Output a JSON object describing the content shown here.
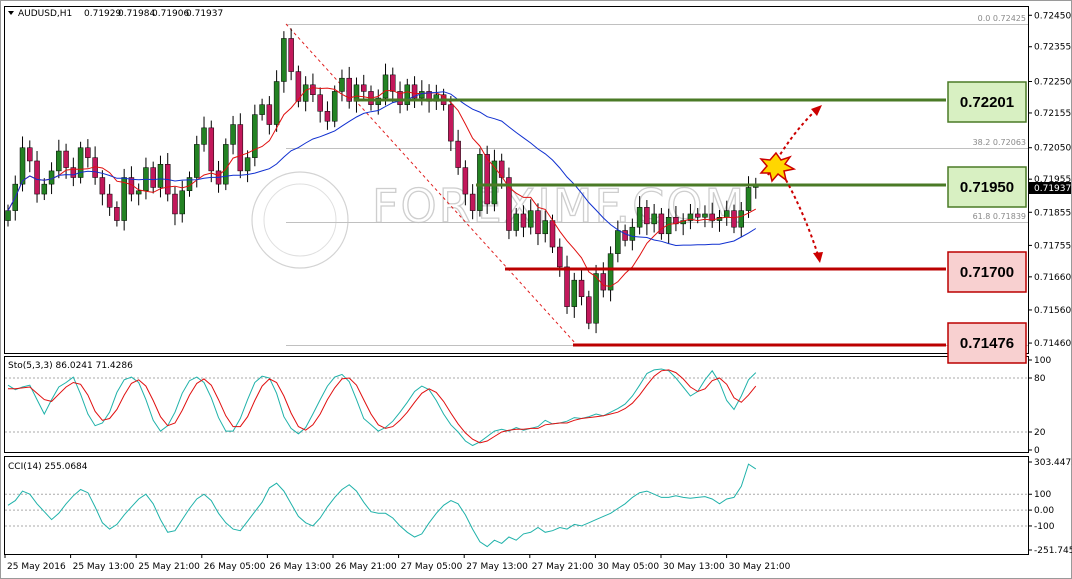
{
  "chart_data": [
    {
      "type": "candlestick",
      "symbol": "AUDUSD,H1",
      "ohlc": [
        "0.71929",
        "0.71984",
        "0.71906",
        "0.71937"
      ],
      "current_price": "0.71937",
      "yticks": [
        "0.72450",
        "0.72355",
        "0.72250",
        "0.72155",
        "0.72050",
        "0.71955",
        "0.71855",
        "0.71755",
        "0.71660",
        "0.71560",
        "0.71460"
      ],
      "ylim": [
        0.7143,
        0.72475
      ],
      "xticks": [
        "25 May 2016",
        "25 May 13:00",
        "25 May 21:00",
        "26 May 05:00",
        "26 May 13:00",
        "26 May 21:00",
        "27 May 05:00",
        "27 May 13:00",
        "27 May 21:00",
        "30 May 05:00",
        "30 May 13:00",
        "30 May 21:00"
      ],
      "closes": [
        0.7186,
        0.7194,
        0.7205,
        0.7201,
        0.7191,
        0.7194,
        0.7198,
        0.7204,
        0.7199,
        0.7196,
        0.7205,
        0.7202,
        0.7196,
        0.7191,
        0.7187,
        0.7183,
        0.7196,
        0.7191,
        0.7192,
        0.7199,
        0.7193,
        0.72,
        0.7191,
        0.7185,
        0.7192,
        0.7196,
        0.7206,
        0.7211,
        0.7198,
        0.7194,
        0.7206,
        0.7212,
        0.7198,
        0.7202,
        0.7215,
        0.7218,
        0.7212,
        0.7225,
        0.7238,
        0.7228,
        0.7219,
        0.7224,
        0.7221,
        0.7216,
        0.7213,
        0.7222,
        0.7226,
        0.7219,
        0.7224,
        0.7222,
        0.7218,
        0.722,
        0.7227,
        0.7222,
        0.7218,
        0.7224,
        0.722,
        0.7222,
        0.7219,
        0.7221,
        0.7218,
        0.7207,
        0.7199,
        0.7191,
        0.7186,
        0.7203,
        0.7188,
        0.7201,
        0.7196,
        0.718,
        0.7185,
        0.7181,
        0.7186,
        0.7179,
        0.7183,
        0.7175,
        0.7169,
        0.7157,
        0.7165,
        0.716,
        0.7152,
        0.7167,
        0.7162,
        0.7173,
        0.718,
        0.7177,
        0.7181,
        0.7187,
        0.7182,
        0.7185,
        0.7179,
        0.7184,
        0.7182,
        0.7183,
        0.7185,
        0.7184,
        0.7185,
        0.7183,
        0.7184,
        0.7186,
        0.7181,
        0.7186,
        0.7193,
        0.71937
      ],
      "fib_labels": [
        "0.0  0.72425",
        "38.2  0.72063",
        "61.8  0.71839"
      ],
      "levels": [
        "0.72201",
        "0.71950",
        "0.71700",
        "0.71476"
      ],
      "colors": {
        "up": "#238223",
        "down": "#c2185b",
        "ma_fast": "#e01010",
        "ma_slow": "#1030d0",
        "resistance": "#4a7a26",
        "support": "#bb0000"
      }
    },
    {
      "type": "line",
      "name": "Sto(5,3,3) 86.0241 71.4286",
      "yticks": [
        "100",
        "80",
        "20",
        "0"
      ],
      "ylim": [
        0,
        100
      ],
      "k": [
        72,
        67,
        70,
        72,
        56,
        40,
        56,
        70,
        75,
        81,
        62,
        40,
        27,
        30,
        42,
        64,
        78,
        81,
        75,
        56,
        33,
        21,
        27,
        42,
        63,
        77,
        81,
        75,
        58,
        36,
        21,
        21,
        35,
        56,
        75,
        82,
        80,
        63,
        37,
        24,
        18,
        25,
        40,
        56,
        71,
        81,
        84,
        76,
        56,
        35,
        28,
        21,
        25,
        32,
        42,
        53,
        65,
        71,
        67,
        55,
        40,
        28,
        20,
        10,
        5,
        9,
        15,
        21,
        23,
        21,
        25,
        22,
        24,
        26,
        33,
        29,
        30,
        32,
        36,
        35,
        37,
        40,
        38,
        42,
        46,
        51,
        60,
        72,
        85,
        89,
        90,
        88,
        80,
        70,
        60,
        65,
        78,
        88,
        75,
        55,
        45,
        60,
        78,
        86
      ],
      "d": [
        68,
        68,
        69,
        70,
        63,
        56,
        54,
        62,
        70,
        75,
        73,
        61,
        43,
        33,
        35,
        45,
        61,
        74,
        78,
        71,
        55,
        37,
        27,
        30,
        44,
        61,
        74,
        79,
        72,
        56,
        38,
        26,
        26,
        37,
        55,
        71,
        79,
        75,
        60,
        41,
        26,
        22,
        28,
        40,
        56,
        69,
        79,
        80,
        72,
        56,
        40,
        28,
        24,
        26,
        33,
        42,
        53,
        63,
        68,
        64,
        54,
        41,
        29,
        19,
        12,
        8,
        10,
        15,
        20,
        22,
        23,
        23,
        24,
        24,
        28,
        29,
        30,
        30,
        33,
        35,
        36,
        37,
        38,
        40,
        42,
        46,
        52,
        61,
        72,
        82,
        88,
        89,
        86,
        79,
        70,
        65,
        68,
        77,
        80,
        73,
        58,
        53,
        61,
        71
      ],
      "colors": {
        "k": "#20b2aa",
        "d": "#e01010"
      }
    },
    {
      "type": "line",
      "name": "CCI(14) 255.0684",
      "yticks": [
        "303.4475",
        "100",
        "0.00",
        "-100",
        "-251.7455"
      ],
      "ylim": [
        -251.7455,
        303.4475
      ],
      "values": [
        30,
        60,
        120,
        100,
        40,
        -10,
        -60,
        -20,
        40,
        90,
        130,
        110,
        20,
        -80,
        -120,
        -90,
        -30,
        20,
        70,
        100,
        40,
        -60,
        -140,
        -130,
        -60,
        10,
        70,
        100,
        60,
        -20,
        -80,
        -120,
        -130,
        -70,
        -10,
        50,
        140,
        170,
        120,
        40,
        -40,
        -80,
        -100,
        -50,
        20,
        80,
        130,
        160,
        120,
        50,
        -10,
        -20,
        -20,
        -50,
        -100,
        -140,
        -170,
        -150,
        -80,
        -20,
        30,
        60,
        40,
        -30,
        -120,
        -200,
        -230,
        -190,
        -210,
        -170,
        -190,
        -150,
        -140,
        -110,
        -140,
        -130,
        -110,
        -120,
        -90,
        -100,
        -80,
        -60,
        -40,
        -20,
        10,
        40,
        80,
        110,
        120,
        100,
        80,
        80,
        90,
        80,
        75,
        80,
        85,
        70,
        40,
        70,
        80,
        150,
        290,
        260
      ],
      "color": "#20b2aa"
    }
  ]
}
